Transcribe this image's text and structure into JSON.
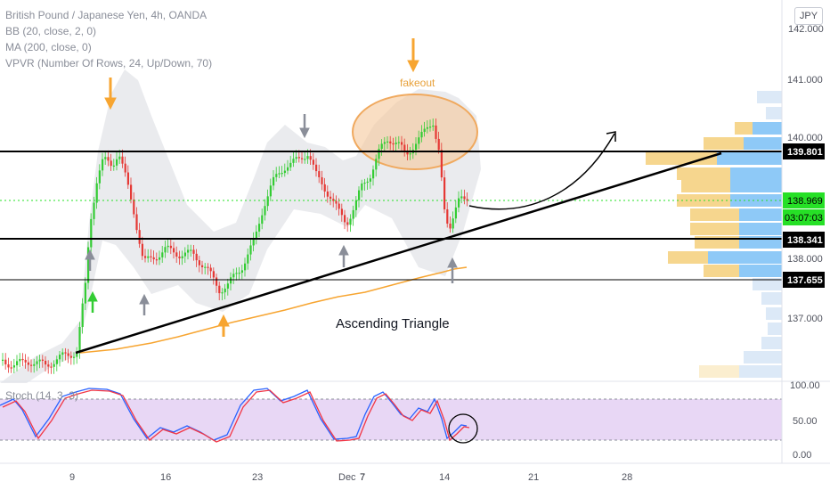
{
  "legend": {
    "symbol": "British Pound / Japanese Yen, 4h, OANDA",
    "bb": "BB (20, close, 2, 0)",
    "ma": "MA (200, close, 0)",
    "vpvr": "VPVR (Number Of Rows, 24, Up/Down, 70)",
    "stoch": "Stoch (14, 3, 3)"
  },
  "currency_button": "JPY",
  "annotations": {
    "fakeout": "fakeout",
    "pattern": "Ascending Triangle"
  },
  "price_axis": {
    "ticks": [
      "141.000",
      "140.000",
      "138.000",
      "137.000"
    ],
    "labels": [
      {
        "text": "139.801",
        "kind": "black"
      },
      {
        "text": "138.969",
        "kind": "green"
      },
      {
        "text": "03:07:03",
        "kind": "green"
      },
      {
        "text": "138.341",
        "kind": "black"
      },
      {
        "text": "137.655",
        "kind": "black"
      }
    ],
    "top_clip": "142.000"
  },
  "stoch_axis": {
    "ticks": [
      "100.00",
      "50.00",
      "0.00"
    ]
  },
  "time_axis": {
    "ticks": [
      "9",
      "16",
      "23",
      "Dec",
      "7",
      "14",
      "21",
      "28"
    ]
  },
  "colors": {
    "up": "#26a69a",
    "down": "#ef5350",
    "green_candle": "#33cc33",
    "red_candle": "#e53935",
    "ma": "#f7a531",
    "bb_band": "#e6e7eb",
    "stoch_bg": "#e8d7f5",
    "stoch_k": "#2962ff",
    "stoch_d": "#f23645",
    "price_green": "#26e026",
    "vpvr_up": "#8ec9f7",
    "vpvr_down": "#f6d68e"
  }
}
